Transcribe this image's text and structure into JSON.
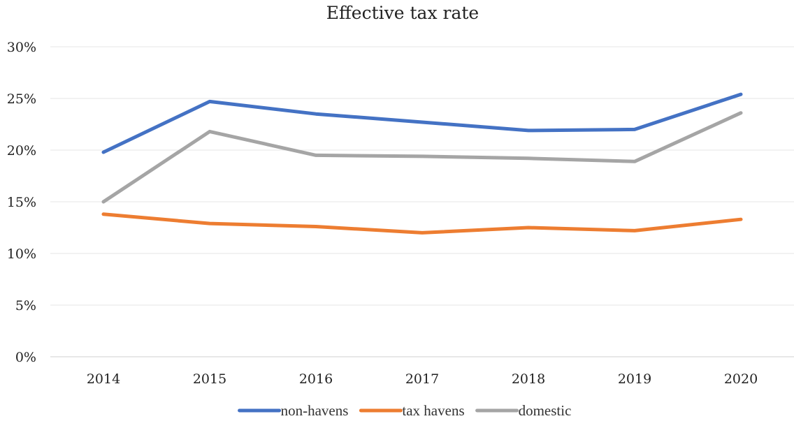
{
  "chart_data": {
    "type": "line",
    "title": "Effective tax rate",
    "xlabel": "",
    "ylabel": "",
    "categories": [
      "2014",
      "2015",
      "2016",
      "2017",
      "2018",
      "2019",
      "2020"
    ],
    "ylim": [
      0,
      30
    ],
    "yticks": [
      "0%",
      "5%",
      "10%",
      "15%",
      "20%",
      "25%",
      "30%"
    ],
    "grid": true,
    "legend_position": "bottom",
    "series": [
      {
        "name": "non-havens",
        "color": "#4472C4",
        "values": [
          19.8,
          24.7,
          23.5,
          22.7,
          21.9,
          22.0,
          25.4
        ]
      },
      {
        "name": "tax havens",
        "color": "#ED7D31",
        "values": [
          13.8,
          12.9,
          12.6,
          12.0,
          12.5,
          12.2,
          13.3
        ]
      },
      {
        "name": "domestic",
        "color": "#A5A5A5",
        "values": [
          15.0,
          21.8,
          19.5,
          19.4,
          19.2,
          18.9,
          23.6
        ]
      }
    ]
  }
}
